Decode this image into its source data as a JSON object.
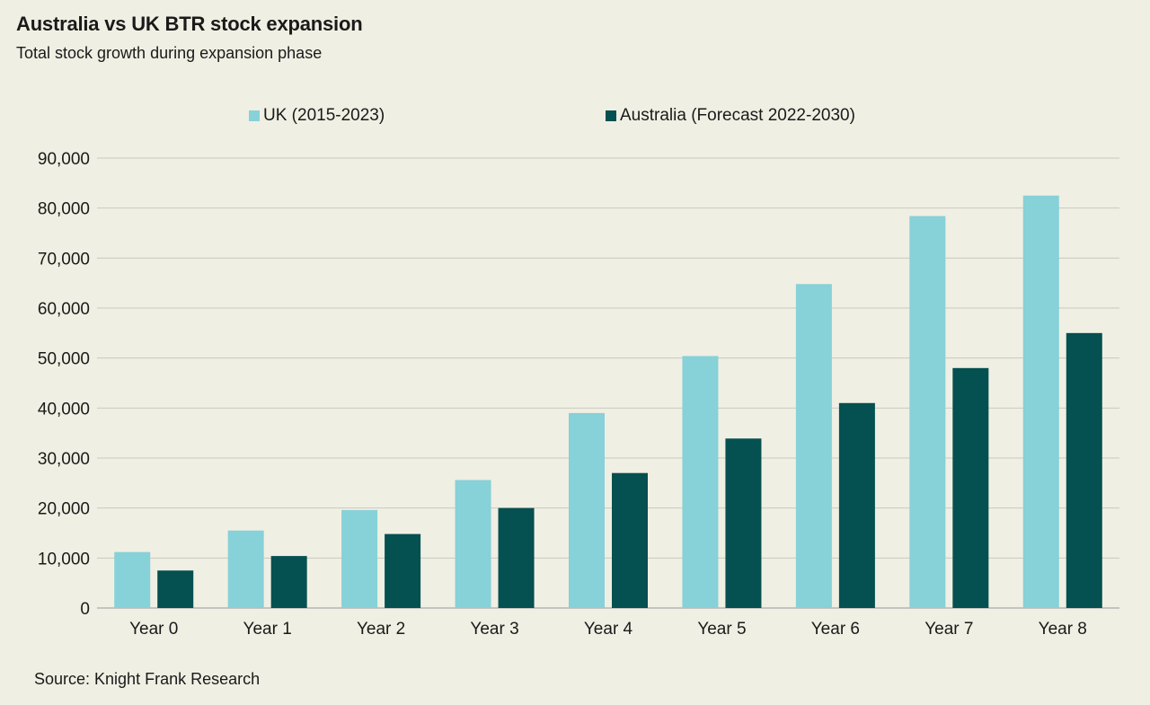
{
  "chart_data": {
    "type": "bar",
    "title": "Australia vs UK BTR stock expansion",
    "subtitle": "Total stock growth during expansion phase",
    "categories": [
      "Year 0",
      "Year 1",
      "Year 2",
      "Year 3",
      "Year 4",
      "Year 5",
      "Year 6",
      "Year 7",
      "Year 8"
    ],
    "series": [
      {
        "name": "UK (2015-2023)",
        "color": "#87d1d8",
        "values": [
          11200,
          15500,
          19600,
          25600,
          39000,
          50400,
          64800,
          78400,
          82500
        ]
      },
      {
        "name": "Australia (Forecast 2022-2030)",
        "color": "#055050",
        "values": [
          7500,
          10400,
          14800,
          20000,
          27000,
          33900,
          41000,
          48000,
          55000
        ]
      }
    ],
    "ylim": [
      0,
      90000
    ],
    "yticks": [
      0,
      10000,
      20000,
      30000,
      40000,
      50000,
      60000,
      70000,
      80000,
      90000
    ],
    "ytick_labels": [
      "0",
      "10,000",
      "20,000",
      "30,000",
      "40,000",
      "50,000",
      "60,000",
      "70,000",
      "80,000",
      "90,000"
    ],
    "grid": true,
    "legend": "top-center",
    "source": "Source: Knight Frank Research"
  }
}
